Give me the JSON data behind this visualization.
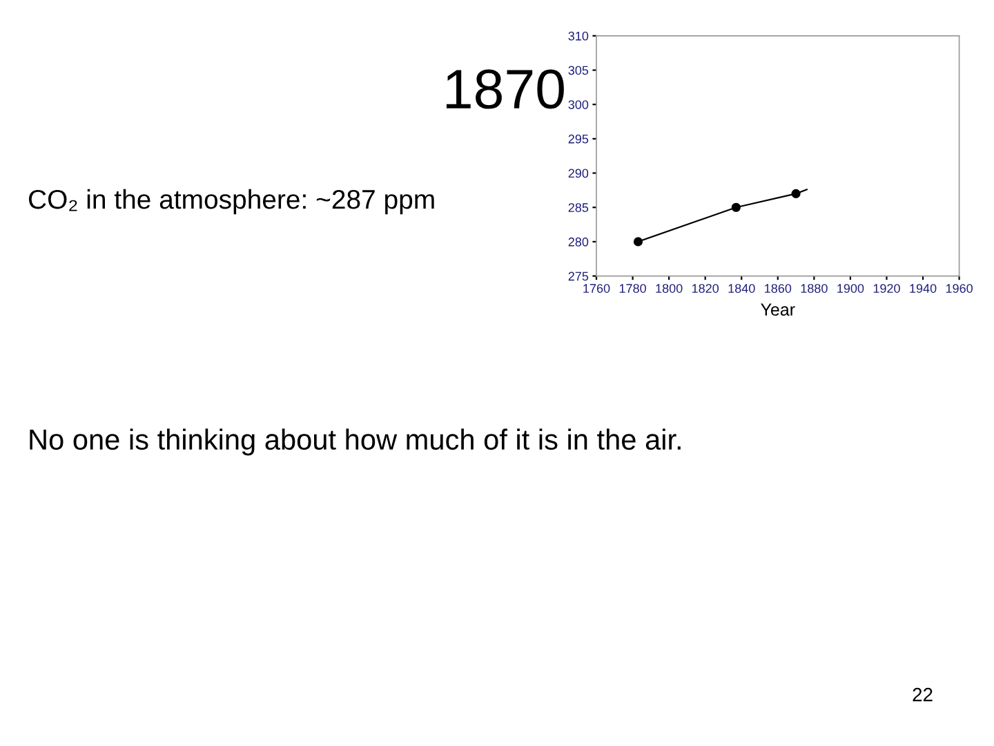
{
  "chart_data": {
    "type": "line",
    "title": "1870",
    "xlabel": "Year",
    "series": [
      {
        "color": "#000000",
        "marker": "none",
        "x": [
          1783,
          1837,
          1870,
          1876
        ],
        "values": [
          280,
          285,
          287,
          287.6
        ]
      },
      {
        "type": "scatter",
        "color": "#000000",
        "marker": "circle",
        "x": [
          1783,
          1837,
          1870
        ],
        "values": [
          280,
          285,
          287
        ]
      }
    ],
    "xlim": [
      1760,
      1960
    ],
    "xticks": [
      1760,
      1780,
      1800,
      1820,
      1840,
      1860,
      1880,
      1900,
      1920,
      1940,
      1960
    ],
    "ylim": [
      275,
      310
    ],
    "yticks": [
      275,
      280,
      285,
      290,
      295,
      300,
      305,
      310
    ],
    "grid": false,
    "legend": false,
    "annotations": [
      "CO₂ in the atmosphere: ~287 ppm",
      "No one is thinking about how much of it is in the air.",
      "22"
    ]
  }
}
